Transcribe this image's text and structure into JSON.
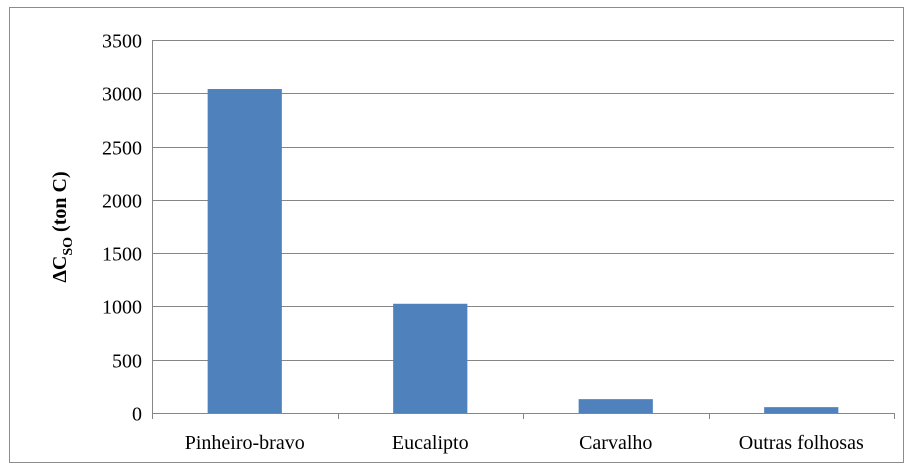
{
  "chart_data": {
    "type": "bar",
    "categories": [
      "Pinheiro-bravo",
      "Eucalipto",
      "Carvalho",
      "Outras folhosas"
    ],
    "values": [
      3040,
      1025,
      130,
      55
    ],
    "title": "",
    "xlabel": "",
    "ylabel": {
      "prefix": "ΔC",
      "subscript": "SO",
      "suffix": " (ton C)"
    },
    "ylim": [
      0,
      3500
    ],
    "yticks": [
      "0",
      "500",
      "1000",
      "1500",
      "2000",
      "2500",
      "3000",
      "3500"
    ],
    "grid": true,
    "legend": "none",
    "bar_color": "#4f81bd",
    "grid_color": "#868686"
  }
}
